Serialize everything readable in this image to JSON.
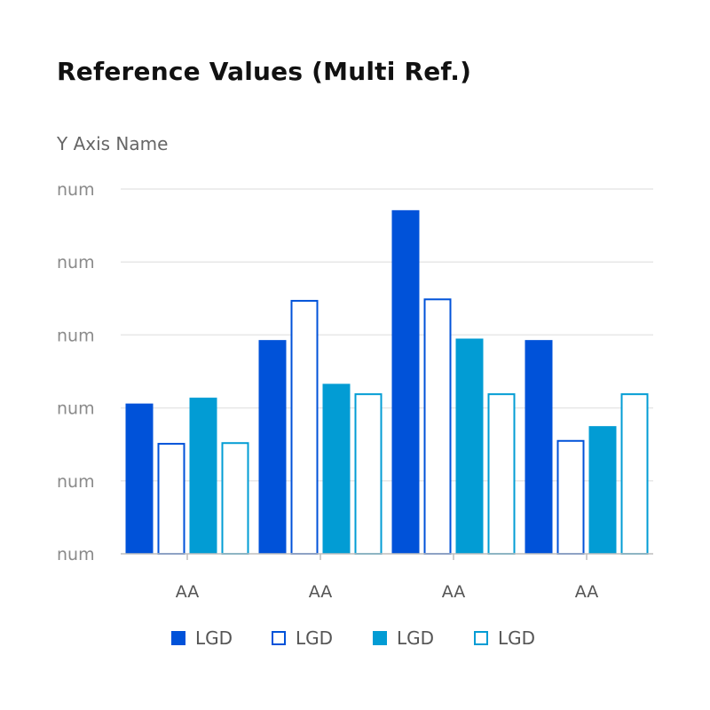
{
  "chart_data": {
    "type": "bar",
    "title": "Reference Values (Multi Ref.)",
    "ylabel": "Y Axis Name",
    "xlabel": "",
    "ylim": [
      0,
      500
    ],
    "y_ticks": [
      {
        "value": 0,
        "label": "num"
      },
      {
        "value": 100,
        "label": "num"
      },
      {
        "value": 200,
        "label": "num"
      },
      {
        "value": 300,
        "label": "num"
      },
      {
        "value": 400,
        "label": "num"
      },
      {
        "value": 500,
        "label": "num"
      }
    ],
    "categories": [
      "AA",
      "AA",
      "AA",
      "AA"
    ],
    "series": [
      {
        "name": "LGD",
        "style": "filled",
        "color": "#0052D9",
        "values": [
          206,
          293,
          471,
          293
        ]
      },
      {
        "name": "LGD",
        "style": "outline",
        "color": "#0052D9",
        "values": [
          152,
          348,
          350,
          156
        ]
      },
      {
        "name": "LGD",
        "style": "filled",
        "color": "#029CD4",
        "values": [
          214,
          233,
          295,
          175
        ]
      },
      {
        "name": "LGD",
        "style": "outline",
        "color": "#029CD4",
        "values": [
          153,
          220,
          220,
          220
        ]
      }
    ],
    "legend_position": "bottom",
    "grid": true
  }
}
